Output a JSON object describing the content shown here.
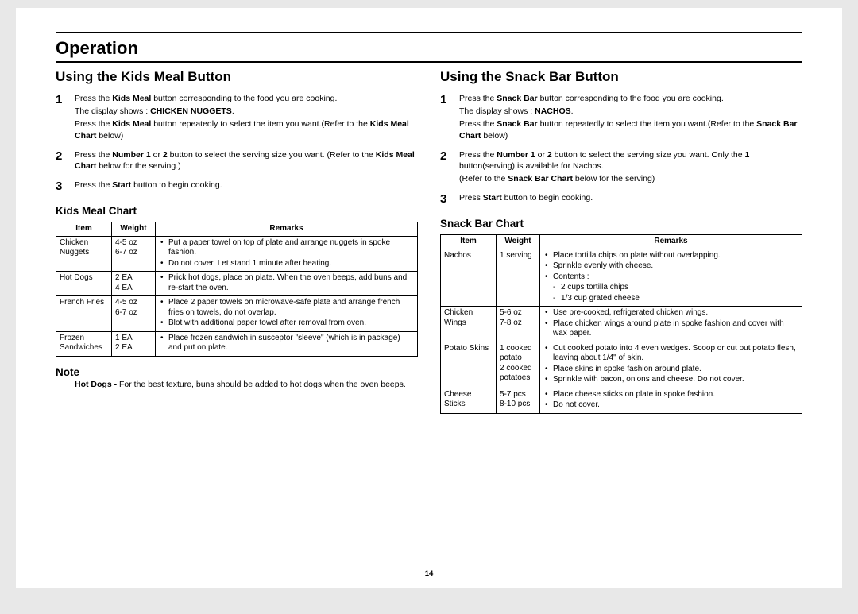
{
  "page": {
    "main_title": "Operation",
    "page_number": "14",
    "text_color": "#000000",
    "bg_color": "#ffffff",
    "outer_bg": "#e8e8e8"
  },
  "left": {
    "section_title": "Using the Kids Meal Button",
    "steps": {
      "s1_line1a": "Press the ",
      "s1_line1b": "Kids Meal",
      "s1_line1c": " button corresponding to the food you are cooking.",
      "s1_line2a": "The display shows : ",
      "s1_line2b": "CHICKEN NUGGETS",
      "s1_line2c": ".",
      "s1_line3a": "Press the ",
      "s1_line3b": "Kids Meal",
      "s1_line3c": " button repeatedly to select the item you want.(Refer to the ",
      "s1_line3d": "Kids Meal Chart",
      "s1_line3e": " below)",
      "s2a": "Press the ",
      "s2b": "Number 1",
      "s2c": " or ",
      "s2d": "2",
      "s2e": " button to select the serving size you want. (Refer to the ",
      "s2f": "Kids Meal Chart",
      "s2g": " below for the serving.)",
      "s3a": "Press the ",
      "s3b": "Start",
      "s3c": " button to begin cooking."
    },
    "chart_title": "Kids Meal Chart",
    "chart_headers": {
      "item": "Item",
      "weight": "Weight",
      "remarks": "Remarks"
    },
    "chart_rows": [
      {
        "item": "Chicken Nuggets",
        "weight": "4-5 oz\n6-7 oz",
        "remarks": [
          "Put a paper towel on top of plate and arrange nuggets in spoke fashion.",
          "Do not cover. Let stand 1 minute after heating."
        ]
      },
      {
        "item": "Hot Dogs",
        "weight": "2 EA\n4 EA",
        "remarks": [
          "Prick hot dogs, place on plate. When the oven beeps, add buns and re-start the oven."
        ]
      },
      {
        "item": "French Fries",
        "weight": "4-5 oz\n6-7 oz",
        "remarks": [
          "Place 2 paper towels on microwave-safe plate and arrange french fries on towels, do not overlap.",
          "Blot with additional paper towel after removal from oven."
        ]
      },
      {
        "item": "Frozen Sandwiches",
        "weight": "1 EA\n2 EA",
        "remarks": [
          "Place frozen sandwich in susceptor \"sleeve\" (which is in package) and put on plate."
        ]
      }
    ],
    "note_title": "Note",
    "note_label": "Hot Dogs - ",
    "note_text": "For the best texture, buns should be added to hot dogs when the oven beeps."
  },
  "right": {
    "section_title": "Using the Snack Bar Button",
    "steps": {
      "s1_line1a": "Press the ",
      "s1_line1b": "Snack Bar",
      "s1_line1c": " button corresponding to the food you are cooking.",
      "s1_line2a": "The display shows : ",
      "s1_line2b": "NACHOS",
      "s1_line2c": ".",
      "s1_line3a": "Press the ",
      "s1_line3b": "Snack Bar",
      "s1_line3c": " button repeatedly to select the item you want.(Refer to the ",
      "s1_line3d": "Snack Bar Chart",
      "s1_line3e": " below)",
      "s2a": "Press the ",
      "s2b": "Number 1",
      "s2c": " or ",
      "s2d": "2",
      "s2e": " button to select the serving size you want. Only the ",
      "s2f": "1",
      "s2g": " button(serving) is available for Nachos.",
      "s2h": "(Refer to the ",
      "s2i": "Snack Bar Chart",
      "s2j": " below for the serving)",
      "s3a": "Press ",
      "s3b": "Start",
      "s3c": " button to begin cooking."
    },
    "chart_title": "Snack Bar Chart",
    "chart_headers": {
      "item": "Item",
      "weight": "Weight",
      "remarks": "Remarks"
    },
    "chart_rows": [
      {
        "item": "Nachos",
        "weight": "1 serving",
        "remarks": [
          "Place tortilla chips on plate without overlapping.",
          "Sprinkle evenly with cheese.",
          "Contents :"
        ],
        "sub": [
          "2 cups tortilla chips",
          "1/3 cup grated cheese"
        ]
      },
      {
        "item": "Chicken Wings",
        "weight": "5-6 oz\n7-8 oz",
        "remarks": [
          "Use pre-cooked, refrigerated chicken wings.",
          "Place chicken wings around plate in spoke fashion and cover with wax paper."
        ]
      },
      {
        "item": "Potato Skins",
        "weight": "1 cooked potato\n2 cooked potatoes",
        "remarks": [
          "Cut cooked potato into 4 even wedges. Scoop or cut out potato flesh, leaving about 1/4\" of skin.",
          "Place skins in spoke fashion around plate.",
          "Sprinkle with bacon, onions and cheese. Do not cover."
        ]
      },
      {
        "item": "Cheese Sticks",
        "weight": "5-7 pcs\n8-10 pcs",
        "remarks": [
          "Place cheese sticks on plate in spoke fashion.",
          "Do not cover."
        ]
      }
    ]
  }
}
